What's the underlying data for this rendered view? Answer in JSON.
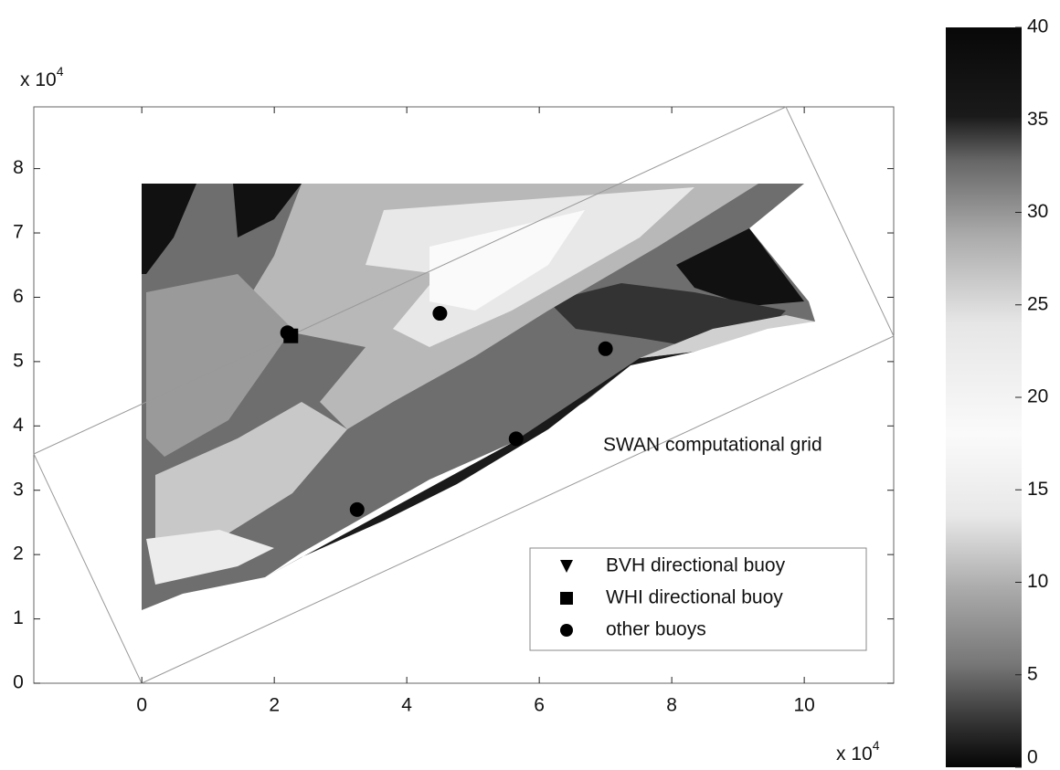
{
  "chart_data": {
    "type": "scatter",
    "xlim": [
      -1.63,
      11.35
    ],
    "ylim": [
      0,
      8.96
    ],
    "xticks": [
      0,
      2,
      4,
      6,
      8,
      10
    ],
    "yticks": [
      0,
      1,
      2,
      3,
      4,
      5,
      6,
      7,
      8
    ],
    "x_multiplier": {
      "base": "x 10",
      "exponent": "4"
    },
    "y_multiplier": {
      "base": "x 10",
      "exponent": "4"
    },
    "annotation": "SWAN computational grid",
    "legend": "lower right",
    "series": [
      {
        "name": "BVH directional buoy",
        "marker": "triangle",
        "color": "#000000",
        "x": [],
        "y": []
      },
      {
        "name": "WHI directional buoy",
        "marker": "square",
        "color": "#000000",
        "x": [
          2.25
        ],
        "y": [
          5.4
        ]
      },
      {
        "name": "other buoys",
        "marker": "circle",
        "color": "#000000",
        "x": [
          2.2,
          4.5,
          7.0,
          5.65,
          3.25
        ],
        "y": [
          5.45,
          5.75,
          5.2,
          3.8,
          2.7
        ]
      }
    ],
    "colorbar": {
      "lim": [
        0,
        40
      ],
      "ticks": [
        0,
        5,
        10,
        15,
        20,
        25,
        30,
        35,
        40
      ]
    }
  }
}
